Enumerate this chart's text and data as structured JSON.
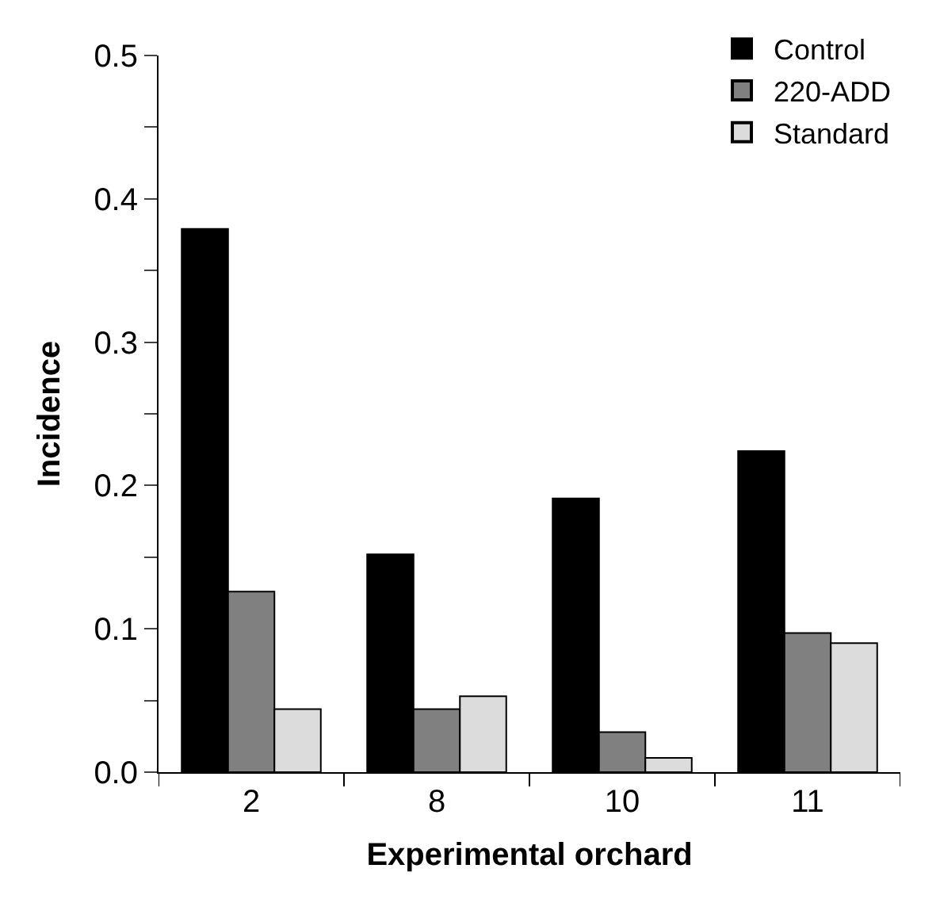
{
  "chart_data": {
    "type": "bar",
    "xlabel": "Experimental orchard",
    "ylabel": "Incidence",
    "categories": [
      "2",
      "8",
      "10",
      "11"
    ],
    "series": [
      {
        "name": "Control",
        "color": "#000000",
        "values": [
          0.379,
          0.152,
          0.191,
          0.224
        ]
      },
      {
        "name": "220-ADD",
        "color": "#808080",
        "values": [
          0.126,
          0.044,
          0.028,
          0.097
        ]
      },
      {
        "name": "Standard",
        "color": "#dcdcdc",
        "values": [
          0.044,
          0.053,
          0.01,
          0.09
        ]
      }
    ],
    "ylim": [
      0,
      0.5
    ],
    "yticks": [
      {
        "value": 0,
        "label": "0.0"
      },
      {
        "value": 0.05,
        "label": null
      },
      {
        "value": 0.1,
        "label": "0.1"
      },
      {
        "value": 0.15,
        "label": null
      },
      {
        "value": 0.2,
        "label": "0.2"
      },
      {
        "value": 0.25,
        "label": null
      },
      {
        "value": 0.3,
        "label": "0.3"
      },
      {
        "value": 0.35,
        "label": null
      },
      {
        "value": 0.4,
        "label": "0.4"
      },
      {
        "value": 0.45,
        "label": null
      },
      {
        "value": 0.5,
        "label": "0.5"
      }
    ],
    "legend": "top right"
  }
}
